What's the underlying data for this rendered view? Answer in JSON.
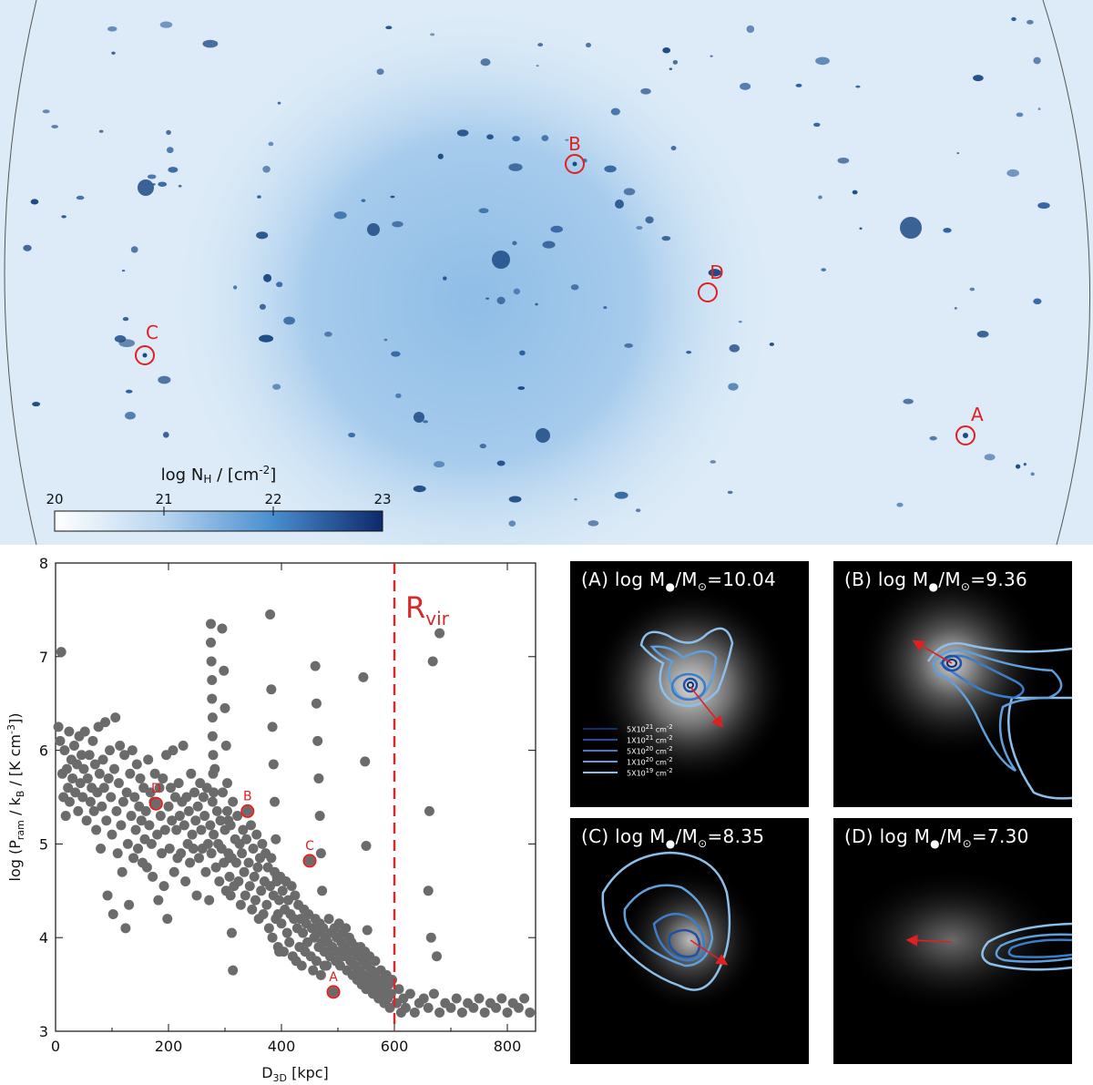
{
  "map": {
    "colorbar": {
      "label": "log N",
      "label_sub": "H",
      "label_unit": " / [cm",
      "label_exp": "-2",
      "label_end": "]",
      "ticks": [
        "20",
        "21",
        "22",
        "23"
      ],
      "color_low": "#ffffff",
      "color_high": "#0d2a6b"
    },
    "markers": [
      "A",
      "B",
      "C",
      "D"
    ],
    "marker_color": "#e02020"
  },
  "chart_data": {
    "type": "scatter",
    "xlabel": "D",
    "xlabel_sub": "3D",
    "xlabel_unit": " [kpc]",
    "ylabel": "log (P",
    "ylabel_sub": "ram",
    "ylabel_mid": " / k",
    "ylabel_sub2": "B",
    "ylabel_end": " / [K cm",
    "ylabel_exp": "-3",
    "ylabel_close": "])",
    "xlim": [
      0,
      850
    ],
    "ylim": [
      3,
      8
    ],
    "xticks": [
      0,
      200,
      400,
      600,
      800
    ],
    "yticks": [
      3,
      4,
      5,
      6,
      7,
      8
    ],
    "rvir": {
      "x": 600,
      "label": "R",
      "label_sub": "vir"
    },
    "point_color": "#6b6b6b",
    "highlight_color": "#e02020",
    "highlighted": [
      {
        "label": "A",
        "x": 492,
        "y": 3.42
      },
      {
        "label": "B",
        "x": 340,
        "y": 5.35
      },
      {
        "label": "C",
        "x": 450,
        "y": 4.82
      },
      {
        "label": "D",
        "x": 178,
        "y": 5.43
      }
    ],
    "points": [
      [
        5,
        6.25
      ],
      [
        8,
        6.1
      ],
      [
        10,
        7.05
      ],
      [
        12,
        5.75
      ],
      [
        14,
        5.5
      ],
      [
        16,
        6.0
      ],
      [
        18,
        5.3
      ],
      [
        20,
        5.8
      ],
      [
        22,
        5.6
      ],
      [
        24,
        6.2
      ],
      [
        25,
        5.45
      ],
      [
        28,
        5.9
      ],
      [
        30,
        5.7
      ],
      [
        33,
        6.05
      ],
      [
        35,
        5.55
      ],
      [
        38,
        5.85
      ],
      [
        40,
        5.35
      ],
      [
        42,
        6.15
      ],
      [
        44,
        5.65
      ],
      [
        46,
        5.95
      ],
      [
        48,
        5.5
      ],
      [
        50,
        5.8
      ],
      [
        52,
        6.2
      ],
      [
        55,
        5.25
      ],
      [
        57,
        5.7
      ],
      [
        60,
        5.95
      ],
      [
        62,
        5.45
      ],
      [
        64,
        5.6
      ],
      [
        66,
        6.1
      ],
      [
        68,
        5.35
      ],
      [
        70,
        5.85
      ],
      [
        72,
        5.15
      ],
      [
        74,
        5.55
      ],
      [
        76,
        6.25
      ],
      [
        78,
        5.75
      ],
      [
        80,
        4.95
      ],
      [
        82,
        5.4
      ],
      [
        84,
        5.9
      ],
      [
        86,
        5.6
      ],
      [
        88,
        6.3
      ],
      [
        90,
        5.25
      ],
      [
        92,
        4.45
      ],
      [
        94,
        5.7
      ],
      [
        96,
        6.0
      ],
      [
        98,
        5.5
      ],
      [
        100,
        5.1
      ],
      [
        102,
        4.25
      ],
      [
        104,
        5.8
      ],
      [
        106,
        6.35
      ],
      [
        108,
        5.35
      ],
      [
        110,
        4.9
      ],
      [
        112,
        5.65
      ],
      [
        114,
        6.05
      ],
      [
        116,
        5.2
      ],
      [
        118,
        4.7
      ],
      [
        120,
        5.45
      ],
      [
        122,
        5.95
      ],
      [
        124,
        4.1
      ],
      [
        126,
        5.55
      ],
      [
        128,
        5.0
      ],
      [
        130,
        4.35
      ],
      [
        132,
        5.75
      ],
      [
        134,
        5.3
      ],
      [
        136,
        6.0
      ],
      [
        138,
        4.85
      ],
      [
        140,
        5.5
      ],
      [
        142,
        5.15
      ],
      [
        144,
        5.85
      ],
      [
        146,
        4.95
      ],
      [
        148,
        5.4
      ],
      [
        150,
        5.7
      ],
      [
        152,
        5.25
      ],
      [
        154,
        4.8
      ],
      [
        156,
        5.6
      ],
      [
        158,
        5.05
      ],
      [
        160,
        5.35
      ],
      [
        162,
        4.75
      ],
      [
        164,
        5.9
      ],
      [
        166,
        5.2
      ],
      [
        168,
        5.55
      ],
      [
        170,
        5.0
      ],
      [
        172,
        4.65
      ],
      [
        174,
        5.45
      ],
      [
        176,
        5.75
      ],
      [
        180,
        5.1
      ],
      [
        182,
        4.4
      ],
      [
        184,
        5.6
      ],
      [
        186,
        5.3
      ],
      [
        188,
        4.9
      ],
      [
        190,
        5.7
      ],
      [
        192,
        4.55
      ],
      [
        194,
        5.15
      ],
      [
        196,
        5.95
      ],
      [
        198,
        4.2
      ],
      [
        200,
        5.4
      ],
      [
        202,
        4.95
      ],
      [
        204,
        5.6
      ],
      [
        206,
        5.25
      ],
      [
        208,
        6.0
      ],
      [
        210,
        4.7
      ],
      [
        212,
        5.5
      ],
      [
        214,
        5.15
      ],
      [
        216,
        4.85
      ],
      [
        218,
        5.65
      ],
      [
        220,
        5.3
      ],
      [
        222,
        4.9
      ],
      [
        224,
        5.45
      ],
      [
        226,
        6.05
      ],
      [
        228,
        5.2
      ],
      [
        230,
        4.6
      ],
      [
        232,
        5.5
      ],
      [
        234,
        5.0
      ],
      [
        236,
        5.35
      ],
      [
        238,
        4.8
      ],
      [
        240,
        5.75
      ],
      [
        242,
        5.1
      ],
      [
        244,
        4.95
      ],
      [
        246,
        5.55
      ],
      [
        248,
        5.25
      ],
      [
        250,
        4.45
      ],
      [
        252,
        5.4
      ],
      [
        254,
        4.85
      ],
      [
        256,
        5.65
      ],
      [
        258,
        5.15
      ],
      [
        260,
        4.95
      ],
      [
        262,
        5.5
      ],
      [
        264,
        5.3
      ],
      [
        266,
        4.7
      ],
      [
        268,
        5.6
      ],
      [
        270,
        5.0
      ],
      [
        272,
        4.4
      ],
      [
        274,
        5.2
      ],
      [
        276,
        4.9
      ],
      [
        278,
        5.45
      ],
      [
        280,
        5.1
      ],
      [
        282,
        5.8
      ],
      [
        284,
        4.75
      ],
      [
        286,
        5.35
      ],
      [
        288,
        5.0
      ],
      [
        290,
        4.6
      ],
      [
        292,
        5.25
      ],
      [
        294,
        4.95
      ],
      [
        296,
        5.55
      ],
      [
        298,
        4.8
      ],
      [
        300,
        5.15
      ],
      [
        302,
        4.5
      ],
      [
        304,
        5.35
      ],
      [
        306,
        4.9
      ],
      [
        308,
        4.65
      ],
      [
        310,
        5.2
      ],
      [
        312,
        4.85
      ],
      [
        314,
        5.45
      ],
      [
        316,
        4.55
      ],
      [
        318,
        5.05
      ],
      [
        320,
        4.8
      ],
      [
        322,
        5.3
      ],
      [
        324,
        4.6
      ],
      [
        326,
        5.0
      ],
      [
        328,
        4.35
      ],
      [
        330,
        4.9
      ],
      [
        332,
        5.15
      ],
      [
        334,
        4.7
      ],
      [
        336,
        4.45
      ],
      [
        338,
        5.05
      ],
      [
        342,
        4.8
      ],
      [
        344,
        4.55
      ],
      [
        346,
        5.2
      ],
      [
        348,
        4.3
      ],
      [
        350,
        4.95
      ],
      [
        352,
        4.65
      ],
      [
        354,
        4.4
      ],
      [
        356,
        5.1
      ],
      [
        358,
        4.75
      ],
      [
        360,
        4.2
      ],
      [
        362,
        4.85
      ],
      [
        364,
        4.5
      ],
      [
        366,
        5.0
      ],
      [
        368,
        4.25
      ],
      [
        370,
        4.6
      ],
      [
        372,
        4.9
      ],
      [
        374,
        4.35
      ],
      [
        376,
        4.75
      ],
      [
        378,
        4.1
      ],
      [
        380,
        4.55
      ],
      [
        382,
        4.85
      ],
      [
        384,
        4.0
      ],
      [
        386,
        4.45
      ],
      [
        388,
        4.7
      ],
      [
        390,
        4.2
      ],
      [
        392,
        4.6
      ],
      [
        394,
        3.9
      ],
      [
        396,
        4.4
      ],
      [
        398,
        4.65
      ],
      [
        400,
        4.15
      ],
      [
        402,
        4.5
      ],
      [
        404,
        3.85
      ],
      [
        406,
        4.3
      ],
      [
        408,
        4.6
      ],
      [
        410,
        4.05
      ],
      [
        412,
        4.4
      ],
      [
        414,
        3.95
      ],
      [
        416,
        4.25
      ],
      [
        418,
        4.55
      ],
      [
        420,
        3.8
      ],
      [
        422,
        4.2
      ],
      [
        424,
        4.45
      ],
      [
        426,
        3.75
      ],
      [
        428,
        4.1
      ],
      [
        430,
        4.35
      ],
      [
        432,
        3.9
      ],
      [
        434,
        4.2
      ],
      [
        436,
        3.7
      ],
      [
        438,
        4.05
      ],
      [
        440,
        4.3
      ],
      [
        442,
        3.85
      ],
      [
        444,
        4.15
      ],
      [
        446,
        3.95
      ],
      [
        448,
        4.25
      ],
      [
        452,
        3.8
      ],
      [
        454,
        4.1
      ],
      [
        456,
        3.65
      ],
      [
        458,
        4.0
      ],
      [
        460,
        4.2
      ],
      [
        462,
        3.75
      ],
      [
        464,
        4.05
      ],
      [
        466,
        3.9
      ],
      [
        468,
        4.15
      ],
      [
        470,
        3.6
      ],
      [
        472,
        3.95
      ],
      [
        474,
        4.1
      ],
      [
        476,
        3.85
      ],
      [
        478,
        4.0
      ],
      [
        480,
        3.7
      ],
      [
        482,
        3.95
      ],
      [
        484,
        4.2
      ],
      [
        486,
        3.8
      ],
      [
        488,
        4.05
      ],
      [
        490,
        3.9
      ],
      [
        494,
        4.1
      ],
      [
        496,
        3.75
      ],
      [
        498,
        4.0
      ],
      [
        500,
        3.85
      ],
      [
        502,
        4.15
      ],
      [
        504,
        3.7
      ],
      [
        506,
        3.95
      ],
      [
        508,
        4.05
      ],
      [
        510,
        3.8
      ],
      [
        512,
        3.9
      ],
      [
        514,
        4.1
      ],
      [
        516,
        3.65
      ],
      [
        518,
        3.85
      ],
      [
        520,
        4.0
      ],
      [
        522,
        3.75
      ],
      [
        524,
        3.95
      ],
      [
        526,
        3.6
      ],
      [
        528,
        3.85
      ],
      [
        530,
        3.7
      ],
      [
        532,
        3.9
      ],
      [
        534,
        3.55
      ],
      [
        536,
        3.8
      ],
      [
        538,
        3.65
      ],
      [
        540,
        3.9
      ],
      [
        542,
        3.5
      ],
      [
        544,
        3.75
      ],
      [
        546,
        3.6
      ],
      [
        548,
        3.85
      ],
      [
        550,
        3.45
      ],
      [
        552,
        3.7
      ],
      [
        554,
        3.55
      ],
      [
        556,
        3.8
      ],
      [
        558,
        3.5
      ],
      [
        560,
        3.65
      ],
      [
        562,
        3.4
      ],
      [
        564,
        3.6
      ],
      [
        566,
        3.75
      ],
      [
        568,
        3.45
      ],
      [
        570,
        3.55
      ],
      [
        572,
        3.35
      ],
      [
        574,
        3.5
      ],
      [
        576,
        3.65
      ],
      [
        578,
        3.4
      ],
      [
        580,
        3.55
      ],
      [
        582,
        3.3
      ],
      [
        584,
        3.45
      ],
      [
        586,
        3.6
      ],
      [
        588,
        3.35
      ],
      [
        590,
        3.5
      ],
      [
        592,
        3.25
      ],
      [
        594,
        3.4
      ],
      [
        596,
        3.55
      ],
      [
        604,
        3.3
      ],
      [
        608,
        3.45
      ],
      [
        612,
        3.2
      ],
      [
        616,
        3.35
      ],
      [
        620,
        3.25
      ],
      [
        628,
        3.4
      ],
      [
        636,
        3.2
      ],
      [
        644,
        3.3
      ],
      [
        652,
        3.35
      ],
      [
        660,
        3.25
      ],
      [
        670,
        3.4
      ],
      [
        680,
        3.2
      ],
      [
        690,
        3.3
      ],
      [
        700,
        3.25
      ],
      [
        710,
        3.35
      ],
      [
        720,
        3.2
      ],
      [
        730,
        3.3
      ],
      [
        740,
        3.25
      ],
      [
        750,
        3.35
      ],
      [
        760,
        3.2
      ],
      [
        770,
        3.3
      ],
      [
        780,
        3.25
      ],
      [
        790,
        3.35
      ],
      [
        800,
        3.2
      ],
      [
        810,
        3.3
      ],
      [
        820,
        3.25
      ],
      [
        830,
        3.35
      ],
      [
        840,
        3.2
      ],
      [
        275,
        7.35
      ],
      [
        275,
        7.15
      ],
      [
        276,
        6.95
      ],
      [
        277,
        6.75
      ],
      [
        277,
        6.55
      ],
      [
        278,
        6.35
      ],
      [
        278,
        6.15
      ],
      [
        279,
        5.95
      ],
      [
        279,
        5.75
      ],
      [
        280,
        5.55
      ],
      [
        295,
        7.3
      ],
      [
        298,
        6.85
      ],
      [
        300,
        6.45
      ],
      [
        302,
        6.05
      ],
      [
        304,
        5.65
      ],
      [
        306,
        5.25
      ],
      [
        308,
        4.85
      ],
      [
        310,
        4.45
      ],
      [
        312,
        4.05
      ],
      [
        314,
        3.65
      ],
      [
        380,
        7.45
      ],
      [
        382,
        6.65
      ],
      [
        384,
        6.25
      ],
      [
        386,
        5.85
      ],
      [
        388,
        5.45
      ],
      [
        390,
        5.05
      ],
      [
        392,
        4.65
      ],
      [
        394,
        4.25
      ],
      [
        396,
        3.85
      ],
      [
        460,
        6.9
      ],
      [
        462,
        6.5
      ],
      [
        464,
        6.1
      ],
      [
        466,
        5.7
      ],
      [
        468,
        5.3
      ],
      [
        470,
        4.9
      ],
      [
        472,
        4.5
      ],
      [
        474,
        4.1
      ],
      [
        476,
        3.7
      ],
      [
        545,
        6.78
      ],
      [
        548,
        5.88
      ],
      [
        550,
        4.98
      ],
      [
        552,
        4.08
      ],
      [
        554,
        3.58
      ],
      [
        668,
        6.95
      ],
      [
        680,
        7.25
      ],
      [
        662,
        5.35
      ],
      [
        660,
        4.5
      ],
      [
        665,
        4.0
      ],
      [
        675,
        3.8
      ]
    ]
  },
  "panels": [
    {
      "id": "A",
      "prefix": "(A) log M",
      "suffix": "=10.04"
    },
    {
      "id": "B",
      "prefix": "(B) log M",
      "suffix": "=9.36"
    },
    {
      "id": "C",
      "prefix": "(C) log M",
      "suffix": "=8.35"
    },
    {
      "id": "D",
      "prefix": "(D) log M",
      "suffix": "=7.30"
    }
  ],
  "legend": [
    {
      "label": "5X10",
      "exp": "21",
      "unit": " cm",
      "unit_exp": "-2",
      "color": "#0d2e72"
    },
    {
      "label": "1X10",
      "exp": "21",
      "unit": " cm",
      "unit_exp": "-2",
      "color": "#1d52a8"
    },
    {
      "label": "5X10",
      "exp": "20",
      "unit": " cm",
      "unit_exp": "-2",
      "color": "#3a7dc8"
    },
    {
      "label": "1X10",
      "exp": "20",
      "unit": " cm",
      "unit_exp": "-2",
      "color": "#5f9fdb"
    },
    {
      "label": "5X10",
      "exp": "19",
      "unit": " cm",
      "unit_exp": "-2",
      "color": "#8cc0ea"
    }
  ]
}
